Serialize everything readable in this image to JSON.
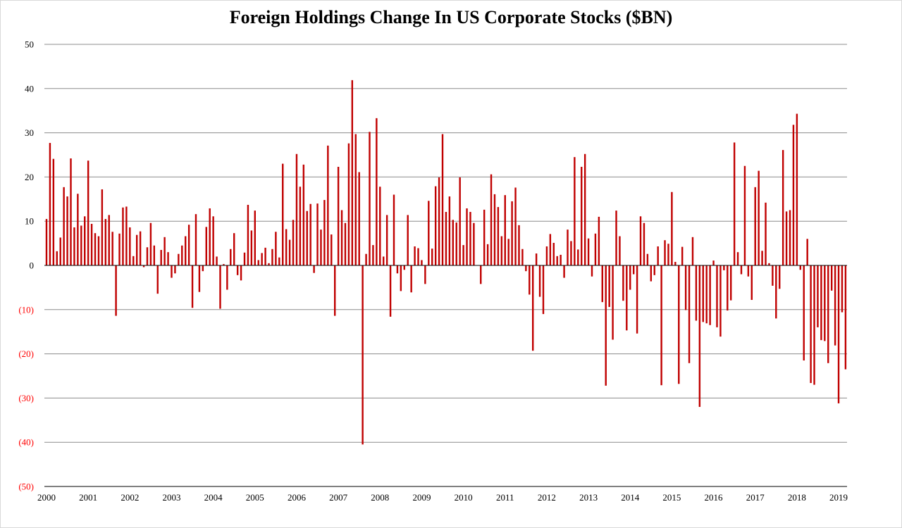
{
  "chart_data": {
    "type": "bar",
    "title": "Foreign Holdings Change In US Corporate Stocks ($BN)",
    "xlabel": "",
    "ylabel": "",
    "ylim": [
      -50,
      50
    ],
    "grid": true,
    "legend": "none",
    "bar_color": "#c00000",
    "negative_label_color": "#ff0000",
    "y_ticks": [
      {
        "value": 50,
        "label": "50"
      },
      {
        "value": 40,
        "label": "40"
      },
      {
        "value": 30,
        "label": "30"
      },
      {
        "value": 20,
        "label": "20"
      },
      {
        "value": 10,
        "label": "10"
      },
      {
        "value": 0,
        "label": "0"
      },
      {
        "value": -10,
        "label": "(10)"
      },
      {
        "value": -20,
        "label": "(20)"
      },
      {
        "value": -30,
        "label": "(30)"
      },
      {
        "value": -40,
        "label": "(40)"
      },
      {
        "value": -50,
        "label": "(50)"
      }
    ],
    "x_tick_labels": [
      "2000",
      "2001",
      "2002",
      "2003",
      "2004",
      "2005",
      "2006",
      "2007",
      "2008",
      "2009",
      "2010",
      "2011",
      "2012",
      "2013",
      "2014",
      "2015",
      "2016",
      "2017",
      "2018",
      "2019"
    ],
    "x_start": "2000-01",
    "values": [
      10.5,
      27.7,
      24.1,
      3.2,
      6.3,
      17.7,
      15.6,
      24.2,
      8.6,
      16.2,
      9.0,
      11.1,
      23.7,
      9.4,
      7.3,
      6.6,
      17.2,
      10.5,
      11.4,
      7.6,
      -11.4,
      7.2,
      13.1,
      13.3,
      8.6,
      2.1,
      6.9,
      7.7,
      -0.4,
      4.1,
      9.6,
      4.5,
      -6.4,
      3.5,
      6.4,
      3.0,
      -2.8,
      -1.8,
      2.6,
      4.5,
      6.6,
      9.2,
      -9.6,
      11.6,
      -6.0,
      -1.3,
      8.7,
      12.9,
      11.1,
      2.0,
      -9.8,
      0.3,
      -5.5,
      3.7,
      7.3,
      -2.2,
      -3.4,
      2.9,
      13.7,
      7.9,
      12.4,
      1.2,
      2.8,
      4.0,
      0.5,
      3.7,
      7.6,
      1.8,
      23.0,
      8.2,
      5.8,
      10.3,
      25.2,
      17.8,
      22.8,
      12.3,
      13.9,
      -1.7,
      14.0,
      8.1,
      14.8,
      27.1,
      7.0,
      -11.4,
      22.3,
      12.5,
      9.6,
      27.6,
      41.9,
      29.7,
      21.1,
      -40.5,
      2.6,
      30.2,
      4.6,
      33.3,
      17.8,
      2.0,
      11.4,
      -11.6,
      16.0,
      -1.8,
      -5.8,
      -1.0,
      11.4,
      -6.1,
      4.3,
      3.9,
      1.2,
      -4.2,
      14.6,
      3.8,
      17.9,
      19.9,
      29.7,
      12.1,
      15.6,
      10.3,
      9.7,
      19.9,
      4.6,
      12.9,
      12.1,
      9.6,
      0.0,
      -4.2,
      12.6,
      4.8,
      20.6,
      16.1,
      13.2,
      6.6,
      15.9,
      6.0,
      14.5,
      17.6,
      9.1,
      3.7,
      -1.3,
      -6.6,
      -19.3,
      2.7,
      -7.1,
      -11.0,
      4.3,
      7.1,
      5.1,
      2.1,
      2.4,
      -2.8,
      8.1,
      5.5,
      24.5,
      3.6,
      22.3,
      25.2,
      6.1,
      -2.5,
      7.2,
      11.0,
      -8.3,
      -27.2,
      -9.4,
      -16.8,
      12.4,
      6.6,
      -8.0,
      -14.7,
      -5.5,
      -2.0,
      -15.4,
      11.1,
      9.6,
      2.6,
      -3.6,
      -2.2,
      4.3,
      -27.1,
      5.7,
      4.9,
      16.6,
      0.8,
      -26.8,
      4.2,
      -10.1,
      -22.1,
      6.4,
      -12.5,
      -32.0,
      -12.8,
      -13.1,
      -13.5,
      1.1,
      -14.0,
      -16.1,
      -1.1,
      -10.2,
      -7.9,
      27.8,
      3.0,
      -2.0,
      22.5,
      -2.5,
      -7.8,
      17.7,
      21.4,
      3.3,
      14.2,
      0.5,
      -4.6,
      -12.0,
      -5.3,
      26.1,
      12.2,
      12.5,
      31.8,
      34.3,
      -1.0,
      -21.5,
      6.0,
      -26.6,
      -27.0,
      -14.0,
      -16.9,
      -17.1,
      -22.1,
      -5.7,
      -18.1,
      -31.2,
      -10.6,
      -23.5
    ]
  }
}
